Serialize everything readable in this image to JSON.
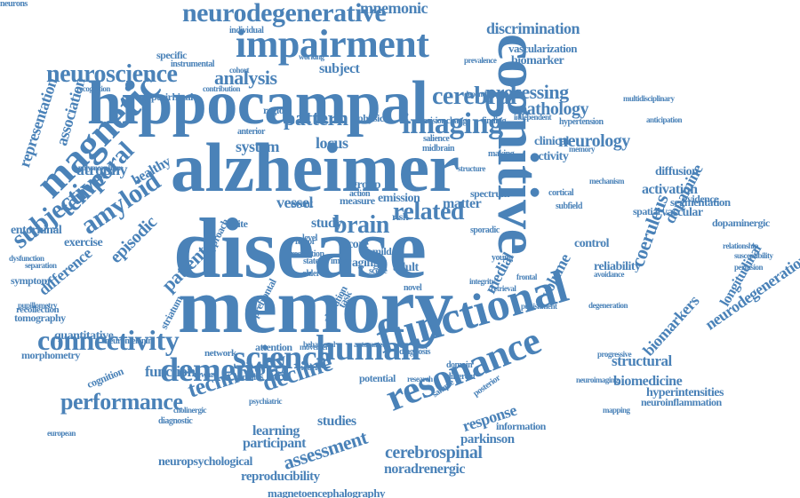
{
  "cloud": {
    "color": "#4a82b8",
    "words": [
      "disease",
      "memory",
      "alzheimer",
      "hippocampal",
      "cognitive",
      "functional",
      "resonance",
      "impairment",
      "magnetic",
      "dementia",
      "human",
      "science",
      "connectivity",
      "imaging",
      "neurodegenerative",
      "neuroscience",
      "performance",
      "technology",
      "decline",
      "cerebral",
      "temporal",
      "amyloid",
      "subjective",
      "brain",
      "related",
      "pattern",
      "analysis",
      "processing",
      "pathology",
      "neurology",
      "coeruleus",
      "structural",
      "cerebrospinal",
      "assessment",
      "response",
      "discrimination",
      "biomedicine",
      "function",
      "participant",
      "learning",
      "studies",
      "noradrenergic",
      "reproducibility",
      "neuropsychological",
      "magnetoencephalography",
      "parkinson",
      "mnemonic",
      "vascularization",
      "biomarker",
      "subject",
      "patient",
      "episodic",
      "representation",
      "association",
      "entorhinal",
      "exercise",
      "difference",
      "dopamine",
      "biomarkers",
      "neurodegeneration",
      "longitudinal",
      "vascular",
      "activation",
      "segmentation",
      "diffusion",
      "dopaminergic",
      "hyperintensities",
      "neuroinflammation",
      "cognition",
      "quantitative",
      "morphometry",
      "tomography",
      "recollection",
      "symptom",
      "atrophy",
      "healthy",
      "medial",
      "volume",
      "locus",
      "system",
      "study",
      "matter",
      "vessel",
      "white",
      "aging",
      "adult",
      "clinical",
      "activity",
      "control",
      "reliability",
      "spatial",
      "evidence",
      "network",
      "attention",
      "reward",
      "diagnostic",
      "information",
      "mapping",
      "neuroimaging",
      "progressive",
      "degeneration",
      "avoidance",
      "perfusion",
      "susceptibility",
      "relationship",
      "multidisciplinary",
      "hypertension",
      "perirhinal",
      "specific",
      "individual",
      "instrumental",
      "recognition",
      "polymorphism",
      "separation",
      "dysfunction",
      "pupillometry",
      "neuromelanin",
      "approach",
      "model",
      "stimulus",
      "potential",
      "different",
      "domain",
      "research",
      "emission",
      "group",
      "event",
      "score",
      "region",
      "anterior",
      "physical",
      "change",
      "decision",
      "making",
      "cortical",
      "subfield",
      "spectrum",
      "finding",
      "midbrain",
      "salience",
      "striatum",
      "prefrontal",
      "resolution",
      "measure",
      "risk",
      "older",
      "scene",
      "novel",
      "image",
      "level",
      "state",
      "factor",
      "action",
      "mild",
      "task",
      "alteration",
      "diagnosis",
      "sporadic",
      "young",
      "frontal",
      "sample",
      "posterior",
      "structure",
      "cohort",
      "contribution",
      "prevalence",
      "independent",
      "dependent",
      "mechanism",
      "anticipation",
      "punishment",
      "retrieval",
      "integrity",
      "european",
      "psychiatric",
      "cholinergic",
      "behavioral",
      "automated",
      "movement",
      "working",
      "memory",
      "neurons"
    ]
  }
}
